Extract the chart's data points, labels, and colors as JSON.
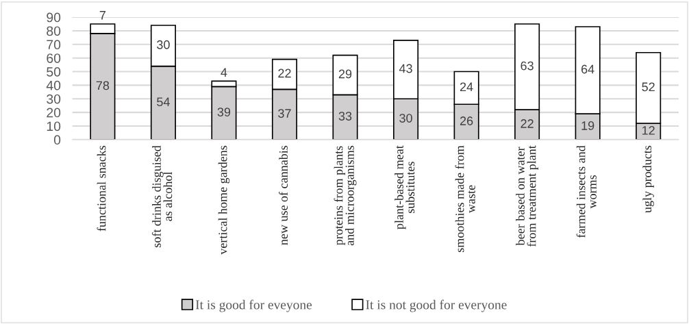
{
  "chart_data": {
    "type": "bar",
    "stacked": true,
    "categories": [
      "functional snacks",
      "soft drinks disguised\nas alcohol",
      "vertical home gardens",
      "new use of cannabis",
      "proteins from plants\nand microorganisms",
      "plant-based meat\nsubstitutes",
      "smoothies made from\nwaste",
      "beer based on water\nfrom treatment plant",
      "farmed insects and\nworms",
      "ugly products"
    ],
    "series": [
      {
        "name": "It is good for eveyone",
        "color": "#d0cece",
        "values": [
          78,
          54,
          39,
          37,
          33,
          30,
          26,
          22,
          19,
          12
        ]
      },
      {
        "name": "It is not good for everyone",
        "color": "#ffffff",
        "values": [
          7,
          30,
          4,
          22,
          29,
          43,
          24,
          63,
          64,
          52
        ]
      }
    ],
    "ylim": [
      0,
      90
    ],
    "yticks": [
      0,
      10,
      20,
      30,
      40,
      50,
      60,
      70,
      80,
      90
    ],
    "grid": "y",
    "legend": "bottom",
    "data_labels": true
  }
}
